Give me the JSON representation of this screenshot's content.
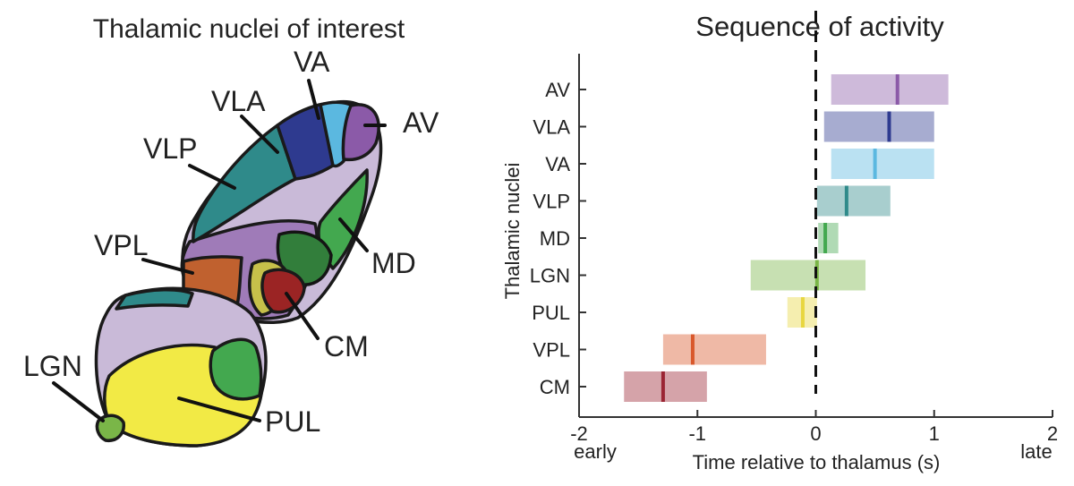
{
  "atlas": {
    "title": "Thalamic nuclei of interest",
    "labels": {
      "va": "VA",
      "vla": "VLA",
      "av": "AV",
      "vlp": "VLP",
      "vpl": "VPL",
      "md": "MD",
      "cm": "CM",
      "lgn": "LGN",
      "pul": "PUL"
    },
    "colors": {
      "outline": "#1a1a1a",
      "av": "#8b5aa8",
      "vla": "#2e3a8f",
      "va": "#5bb8e0",
      "vlp": "#2f8a8a",
      "md": "#43a84f",
      "lgn": "#7ab648",
      "pul": "#f2ea45",
      "vpl": "#c0612f",
      "cm": "#9b2424",
      "olive": "#c6c04a",
      "lavender": "#c9bad8",
      "purple": "#9f7bb8"
    }
  },
  "chart_data": {
    "type": "range",
    "title": "Sequence of activity",
    "ylabel": "Thalamic nuclei",
    "xlabel": "Time relative to thalamus (s)",
    "x_left_note": "early",
    "x_right_note": "late",
    "xlim": [
      -2,
      2
    ],
    "xticks": [
      -2,
      -1,
      0,
      1,
      2
    ],
    "tick_labels": [
      "-2",
      "-1",
      "0",
      "1",
      "2"
    ],
    "reference_line": 0,
    "series": [
      {
        "name": "AV",
        "start": 0.13,
        "end": 1.12,
        "marker": 0.69,
        "color": "#8b5aa8"
      },
      {
        "name": "VLA",
        "start": 0.07,
        "end": 1.0,
        "marker": 0.62,
        "color": "#2e3a8f"
      },
      {
        "name": "VA",
        "start": 0.13,
        "end": 1.0,
        "marker": 0.5,
        "color": "#5bb8e0"
      },
      {
        "name": "VLP",
        "start": 0.01,
        "end": 0.63,
        "marker": 0.26,
        "color": "#2f8a8a"
      },
      {
        "name": "MD",
        "start": 0.02,
        "end": 0.19,
        "marker": 0.08,
        "color": "#43a84f"
      },
      {
        "name": "LGN",
        "start": -0.55,
        "end": 0.42,
        "marker": 0.01,
        "color": "#7ab648"
      },
      {
        "name": "PUL",
        "start": -0.24,
        "end": 0.01,
        "marker": -0.11,
        "color": "#e8d640"
      },
      {
        "name": "VPL",
        "start": -1.29,
        "end": -0.42,
        "marker": -1.04,
        "color": "#d9582c"
      },
      {
        "name": "CM",
        "start": -1.62,
        "end": -0.92,
        "marker": -1.29,
        "color": "#9b2433"
      }
    ]
  }
}
